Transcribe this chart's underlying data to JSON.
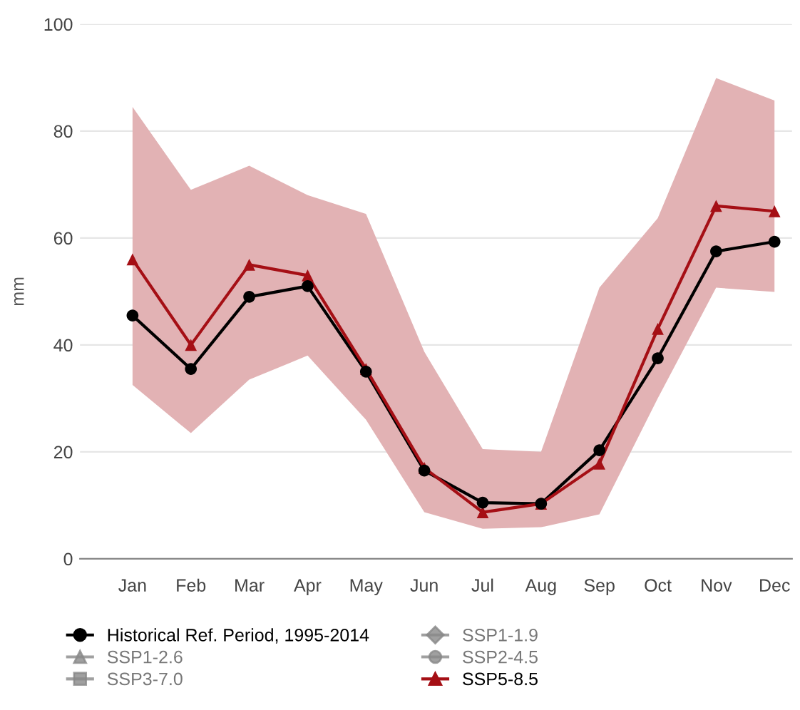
{
  "chart_data": {
    "type": "line",
    "ylabel": "mm",
    "categories": [
      "Jan",
      "Feb",
      "Mar",
      "Apr",
      "May",
      "Jun",
      "Jul",
      "Aug",
      "Sep",
      "Oct",
      "Nov",
      "Dec"
    ],
    "ylim": [
      0,
      100
    ],
    "yticks": [
      0,
      20,
      40,
      60,
      80,
      100
    ],
    "grid": "y",
    "legend": "bottom",
    "series": [
      {
        "name": "Historical Ref. Period, 1995-2014",
        "color": "#000000",
        "marker": "circle",
        "values": [
          45.5,
          35.5,
          49,
          51,
          35,
          16.5,
          10.5,
          10.3,
          20.3,
          37.5,
          57.5,
          59.3
        ]
      },
      {
        "name": "SSP1-1.9",
        "color": "#888888",
        "marker": "diamond",
        "values": [
          null,
          null,
          null,
          null,
          null,
          null,
          null,
          null,
          null,
          null,
          null,
          null
        ]
      },
      {
        "name": "SSP1-2.6",
        "color": "#888888",
        "marker": "triangle",
        "values": [
          null,
          null,
          null,
          null,
          null,
          null,
          null,
          null,
          null,
          null,
          null,
          null
        ]
      },
      {
        "name": "SSP2-4.5",
        "color": "#888888",
        "marker": "circle",
        "values": [
          null,
          null,
          null,
          null,
          null,
          null,
          null,
          null,
          null,
          null,
          null,
          null
        ]
      },
      {
        "name": "SSP3-7.0",
        "color": "#888888",
        "marker": "square",
        "values": [
          null,
          null,
          null,
          null,
          null,
          null,
          null,
          null,
          null,
          null,
          null,
          null
        ]
      },
      {
        "name": "SSP5-8.5",
        "color": "#a50f15",
        "marker": "triangle",
        "values": [
          56,
          40,
          55,
          53,
          35.5,
          17,
          8.7,
          10.3,
          17.8,
          43,
          66,
          65
        ],
        "lower": [
          32.5,
          23.5,
          33.5,
          38,
          26,
          8.7,
          5.6,
          5.9,
          8.3,
          30,
          50.7,
          49.9
        ],
        "upper": [
          84.5,
          69,
          73.5,
          68,
          64.5,
          38.7,
          20.5,
          20,
          50.7,
          63.7,
          89.9,
          85.7
        ]
      }
    ]
  }
}
